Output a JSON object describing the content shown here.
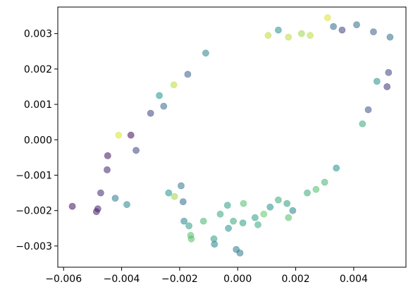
{
  "chart_data": {
    "type": "scatter",
    "title": "",
    "xlabel": "",
    "ylabel": "",
    "xlim": [
      -0.0062,
      0.0058
    ],
    "ylim": [
      -0.0036,
      0.00375
    ],
    "grid": false,
    "legend": "none",
    "x_ticks": [
      -0.006,
      -0.004,
      -0.002,
      0.0,
      0.002,
      0.004
    ],
    "x_tick_labels": [
      "−0.006",
      "−0.004",
      "−0.002",
      "0.000",
      "0.002",
      "0.004"
    ],
    "y_ticks": [
      -0.003,
      -0.002,
      -0.001,
      0.0,
      0.001,
      0.002,
      0.003
    ],
    "y_tick_labels": [
      "−0.003",
      "−0.002",
      "−0.001",
      "0.000",
      "0.001",
      "0.002",
      "0.003"
    ],
    "marker_alpha": 0.55,
    "colormap": [
      "#440154",
      "#3b528b",
      "#21918c",
      "#5ec962",
      "#fde725"
    ],
    "points": [
      [
        -0.0057,
        -0.00188,
        0.05
      ],
      [
        -0.00487,
        -0.00203,
        0.08
      ],
      [
        -0.00482,
        -0.00195,
        0.1
      ],
      [
        -0.00472,
        -0.0015,
        0.12
      ],
      [
        -0.00422,
        -0.00165,
        0.4
      ],
      [
        -0.00382,
        -0.00183,
        0.45
      ],
      [
        -0.0045,
        -0.00085,
        0.1
      ],
      [
        -0.00448,
        -0.00045,
        0.05
      ],
      [
        -0.0041,
        0.00013,
        0.95
      ],
      [
        -0.00368,
        0.00013,
        0.03
      ],
      [
        -0.0035,
        -0.0003,
        0.2
      ],
      [
        -0.00238,
        -0.0015,
        0.5
      ],
      [
        -0.00218,
        -0.0016,
        0.85
      ],
      [
        -0.00195,
        -0.0013,
        0.4
      ],
      [
        -0.00188,
        -0.00175,
        0.35
      ],
      [
        -0.00185,
        -0.0023,
        0.45
      ],
      [
        -0.00168,
        -0.00243,
        0.55
      ],
      [
        -0.00162,
        -0.0027,
        0.7
      ],
      [
        -0.0016,
        -0.0028,
        0.7
      ],
      [
        -0.00118,
        -0.0023,
        0.65
      ],
      [
        -0.00082,
        -0.0028,
        0.55
      ],
      [
        -0.0008,
        -0.00295,
        0.45
      ],
      [
        -0.0006,
        -0.0021,
        0.6
      ],
      [
        -0.00035,
        -0.00185,
        0.55
      ],
      [
        -0.00032,
        -0.0025,
        0.5
      ],
      [
        -0.00015,
        -0.0023,
        0.6
      ],
      [
        -5e-05,
        -0.0031,
        0.4
      ],
      [
        8e-05,
        -0.0032,
        0.4
      ],
      [
        0.00018,
        -0.00235,
        0.55
      ],
      [
        0.0002,
        -0.0018,
        0.7
      ],
      [
        0.0006,
        -0.0022,
        0.55
      ],
      [
        0.0007,
        -0.0024,
        0.6
      ],
      [
        0.0009,
        -0.0021,
        0.75
      ],
      [
        0.00112,
        -0.0019,
        0.5
      ],
      [
        0.0014,
        -0.0017,
        0.6
      ],
      [
        0.0017,
        -0.0018,
        0.55
      ],
      [
        0.00175,
        -0.0022,
        0.7
      ],
      [
        0.0019,
        -0.002,
        0.45
      ],
      [
        0.0024,
        -0.0015,
        0.6
      ],
      [
        0.0027,
        -0.0014,
        0.7
      ],
      [
        0.003,
        -0.0012,
        0.65
      ],
      [
        0.0034,
        -0.0008,
        0.5
      ],
      [
        -0.0011,
        0.00245,
        0.45
      ],
      [
        -0.00172,
        0.00185,
        0.3
      ],
      [
        -0.0022,
        0.00155,
        0.9
      ],
      [
        -0.0027,
        0.00125,
        0.5
      ],
      [
        -0.00255,
        0.00095,
        0.35
      ],
      [
        -0.003,
        0.00075,
        0.2
      ],
      [
        0.00105,
        0.00295,
        0.9
      ],
      [
        0.0014,
        0.0031,
        0.5
      ],
      [
        0.00175,
        0.0029,
        0.9
      ],
      [
        0.0022,
        0.003,
        0.85
      ],
      [
        0.0025,
        0.00295,
        0.9
      ],
      [
        0.0031,
        0.00345,
        0.95
      ],
      [
        0.0033,
        0.0032,
        0.35
      ],
      [
        0.0036,
        0.0031,
        0.2
      ],
      [
        0.0041,
        0.00325,
        0.35
      ],
      [
        0.00468,
        0.00305,
        0.3
      ],
      [
        0.00525,
        0.0029,
        0.35
      ],
      [
        0.00515,
        0.0015,
        0.15
      ],
      [
        0.0048,
        0.00165,
        0.5
      ],
      [
        0.0052,
        0.0019,
        0.2
      ],
      [
        0.0045,
        0.00085,
        0.25
      ],
      [
        0.0043,
        0.00045,
        0.6
      ]
    ]
  }
}
